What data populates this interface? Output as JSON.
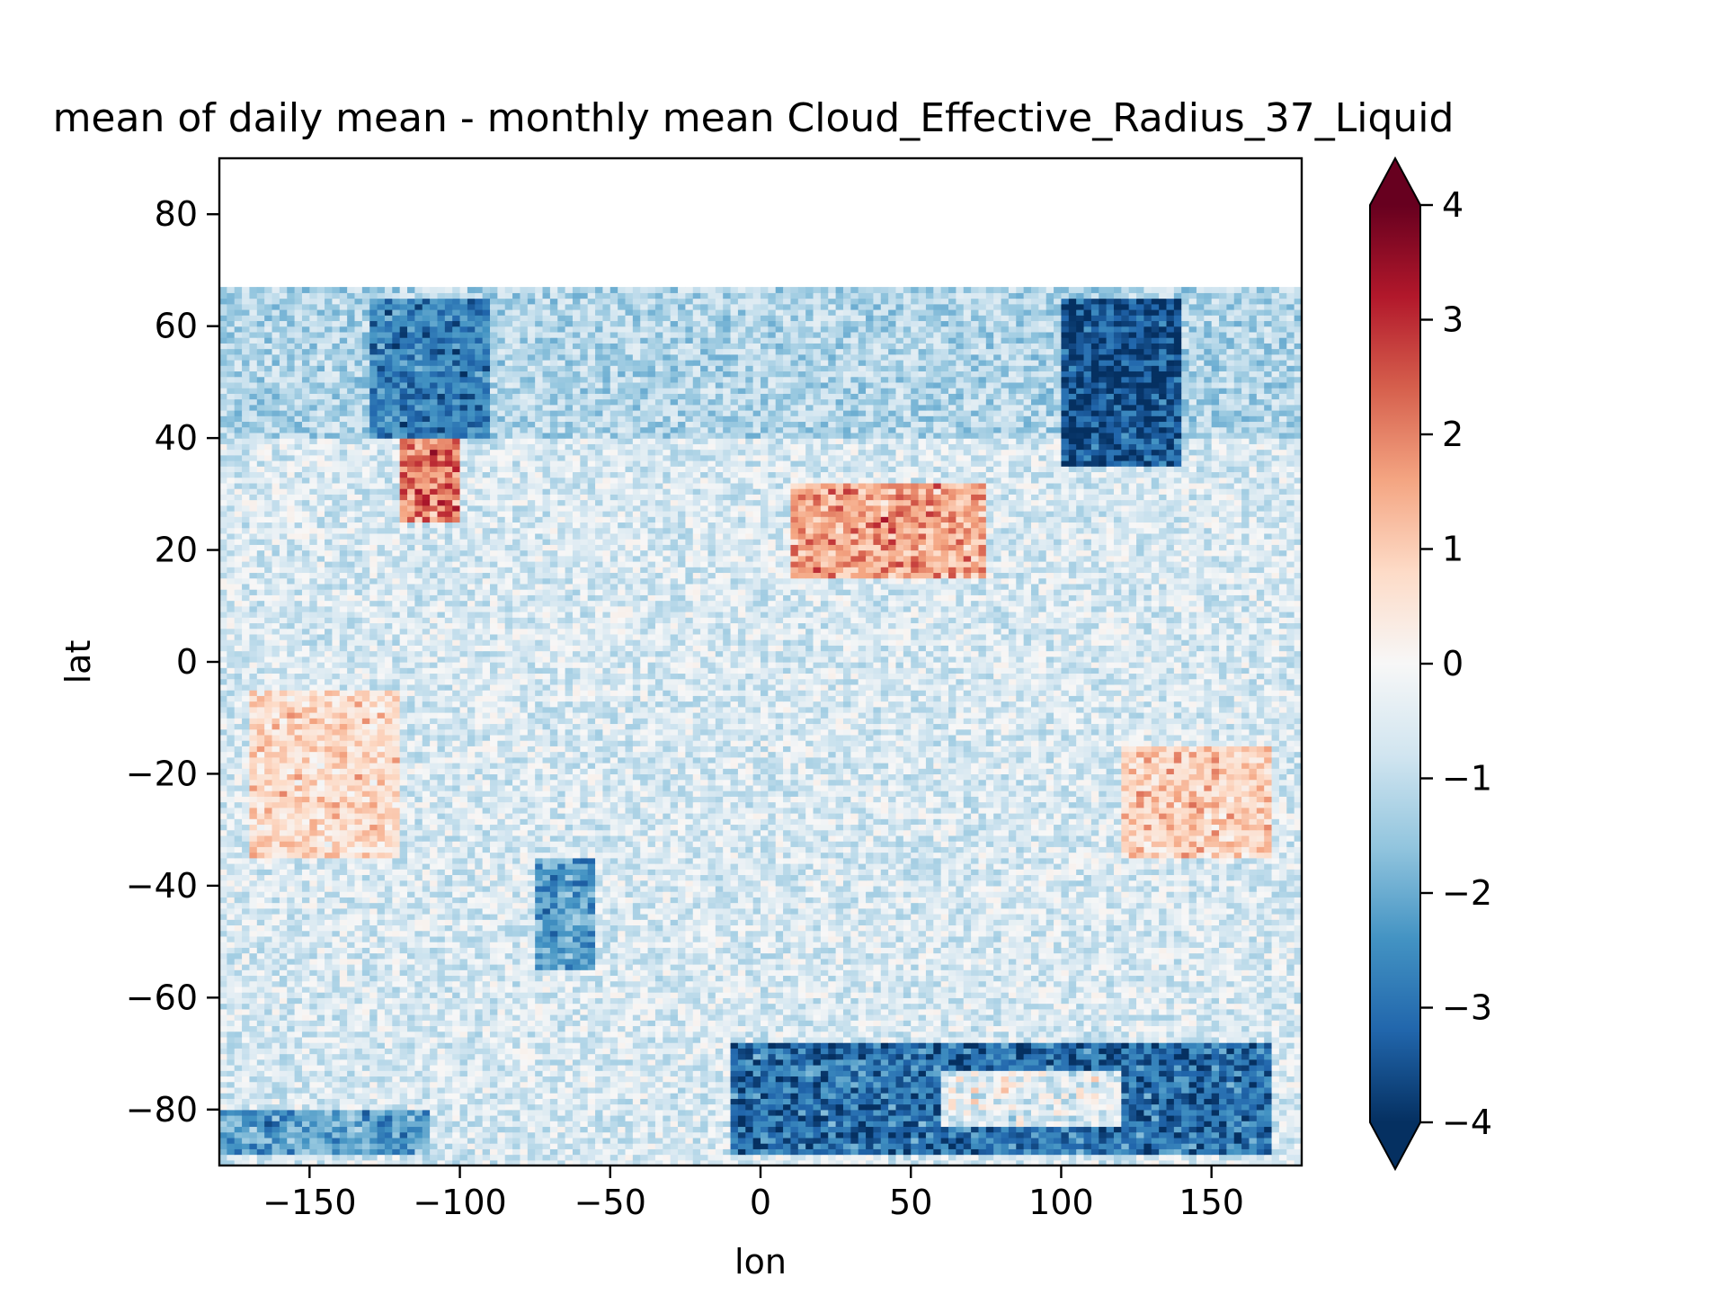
{
  "chart_data": {
    "type": "heatmap",
    "title": "mean of daily mean - monthly mean Cloud_Effective_Radius_37_Liquid",
    "xlabel": "lon",
    "ylabel": "lat",
    "xlim": [
      -180,
      180
    ],
    "ylim": [
      -90,
      90
    ],
    "x_ticks": [
      -150,
      -100,
      -50,
      0,
      50,
      100,
      150
    ],
    "y_ticks": [
      -80,
      -60,
      -40,
      -20,
      0,
      20,
      40,
      60,
      80
    ],
    "x_tick_labels": [
      "−150",
      "−100",
      "−50",
      "0",
      "50",
      "100",
      "150"
    ],
    "y_tick_labels": [
      "−80",
      "−60",
      "−40",
      "−20",
      "0",
      "20",
      "40",
      "60",
      "80"
    ],
    "data_lat_range": [
      -90,
      67
    ],
    "no_data_region": "lat above ~67 (blank)",
    "colorbar": {
      "colormap": "RdBu_r",
      "vmin": -4,
      "vmax": 4,
      "extend": "both",
      "ticks": [
        -4,
        -3,
        -2,
        -1,
        0,
        1,
        2,
        3,
        4
      ],
      "tick_labels": [
        "−4",
        "−3",
        "−2",
        "−1",
        "0",
        "1",
        "2",
        "3",
        "4"
      ]
    },
    "features": [
      {
        "description": "strong negative anomalies",
        "lon": [
          -130,
          -90
        ],
        "lat": [
          40,
          65
        ],
        "value": -3
      },
      {
        "description": "strong negative anomalies",
        "lon": [
          100,
          140
        ],
        "lat": [
          35,
          65
        ],
        "value": -4
      },
      {
        "description": "negative band",
        "lon": [
          -10,
          170
        ],
        "lat": [
          -88,
          -68
        ],
        "value": -3.5
      },
      {
        "description": "near-zero patch",
        "lon": [
          60,
          120
        ],
        "lat": [
          -83,
          -73
        ],
        "value": 0
      },
      {
        "description": "positive anomalies",
        "lon": [
          10,
          75
        ],
        "lat": [
          15,
          32
        ],
        "value": 2
      },
      {
        "description": "positive anomalies",
        "lon": [
          -170,
          -120
        ],
        "lat": [
          -35,
          -5
        ],
        "value": 1
      },
      {
        "description": "positive anomalies",
        "lon": [
          120,
          170
        ],
        "lat": [
          -35,
          -15
        ],
        "value": 1.2
      },
      {
        "description": "positive anomalies",
        "lon": [
          -120,
          -100
        ],
        "lat": [
          25,
          40
        ],
        "value": 2.5
      },
      {
        "description": "negative anomalies",
        "lon": [
          -75,
          -55
        ],
        "lat": [
          -55,
          -35
        ],
        "value": -2.5
      },
      {
        "description": "negative anomalies",
        "lon": [
          -180,
          -110
        ],
        "lat": [
          -88,
          -80
        ],
        "value": -2.5
      }
    ]
  },
  "colors": {
    "axes_edge": "#000000",
    "background": "#ffffff"
  }
}
